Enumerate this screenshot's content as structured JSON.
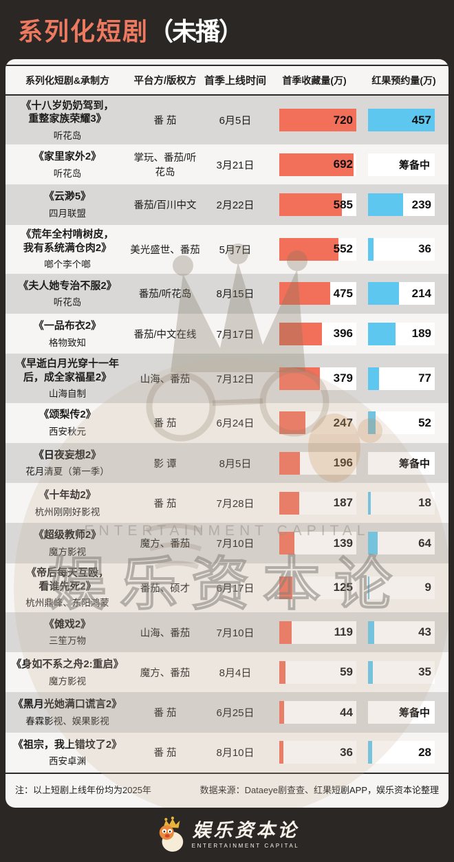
{
  "colors": {
    "background": "#2B2724",
    "title_accent": "#EE7961",
    "title_secondary": "#FFFFFF",
    "bar_collect_orange": "#F2705A",
    "bar_reserve_blue": "#5EC7EF",
    "row_shade": "#D9D8D6",
    "row_light": "#F6F5F3",
    "card": "#F6F5F3",
    "rule": "#2B2B2B"
  },
  "header": {
    "title_main": "系列化短剧",
    "title_paren": "（未播）"
  },
  "table": {
    "columns": [
      "系列化短剧&承制方",
      "平台方/版权方",
      "首季上线时间",
      "首季收藏量(万)",
      "红果预约量(万)"
    ],
    "collect_max": 720,
    "reserve_max": 457,
    "pending_label": "筹备中",
    "rows": [
      {
        "title": "《十八岁奶奶驾到，\n重整家族荣耀3》",
        "producer": "听花岛",
        "platform": "番 茄",
        "date": "6月5日",
        "collect": 720,
        "reserve": 457
      },
      {
        "title": "《家里家外2》",
        "producer": "听花岛",
        "platform": "掌玩、番茄/听花岛",
        "date": "3月21日",
        "collect": 692,
        "reserve": "筹备中"
      },
      {
        "title": "《云渺5》",
        "producer": "四月联盟",
        "platform": "番茄/百川中文",
        "date": "2月22日",
        "collect": 585,
        "reserve": 239
      },
      {
        "title": "《荒年全村啃树皮，\n我有系统满仓肉2》",
        "producer": "啷个李个啷",
        "platform": "美光盛世、番茄",
        "date": "5月7日",
        "collect": 552,
        "reserve": 36
      },
      {
        "title": "《夫人她专治不服2》",
        "producer": "听花岛",
        "platform": "番茄/听花岛",
        "date": "8月15日",
        "collect": 475,
        "reserve": 214
      },
      {
        "title": "《一品布衣2》",
        "producer": "格物致知",
        "platform": "番茄/中文在线",
        "date": "7月17日",
        "collect": 396,
        "reserve": 189
      },
      {
        "title": "《早逝白月光穿十一年\n后，成全家福星2》",
        "producer": "山海自制",
        "platform": "山海、番茄",
        "date": "7月12日",
        "collect": 379,
        "reserve": 77
      },
      {
        "title": "《颂梨传2》",
        "producer": "西安秋元",
        "platform": "番 茄",
        "date": "6月24日",
        "collect": 247,
        "reserve": 52
      },
      {
        "title": "《日夜妄想2》",
        "producer": "花月清夏（第一季）",
        "platform": "影 谭",
        "date": "8月5日",
        "collect": 196,
        "reserve": "筹备中"
      },
      {
        "title": "《十年劫2》",
        "producer": "杭州刚刚好影视",
        "platform": "番 茄",
        "date": "7月28日",
        "collect": 187,
        "reserve": 18
      },
      {
        "title": "《超级教师2》",
        "producer": "魔方影视",
        "platform": "魔方、番茄",
        "date": "7月10日",
        "collect": 139,
        "reserve": 64
      },
      {
        "title": "《帝后每天互殴，\n看谁先死2》",
        "producer": "杭州鼎峰、东阳鸿蒙",
        "platform": "番茄、硕才",
        "date": "6月17日",
        "collect": 125,
        "reserve": 9
      },
      {
        "title": "《傩戏2》",
        "producer": "三笙万物",
        "platform": "山海、番茄",
        "date": "7月10日",
        "collect": 119,
        "reserve": 43
      },
      {
        "title": "《身如不系之舟2:重启》",
        "producer": "魔方影视",
        "platform": "魔方、番茄",
        "date": "8月4日",
        "collect": 59,
        "reserve": 35
      },
      {
        "title": "《黑月光她满口谎言2》",
        "producer": "春霖影视、娱果影视",
        "platform": "番 茄",
        "date": "6月25日",
        "collect": 44,
        "reserve": "筹备中"
      },
      {
        "title": "《祖宗，我上错坟了2》",
        "producer": "西安卓渊",
        "platform": "番 茄",
        "date": "8月10日",
        "collect": 36,
        "reserve": 28
      }
    ]
  },
  "footnote": {
    "note": "注：以上短剧上线年份均为2025年",
    "source": "数据来源：Dataeye剧查查、红果短剧APP，娱乐资本论整理"
  },
  "watermark": {
    "text_cn": "娱乐资本论",
    "text_en": "ENTERTAINMENT CAPITAL"
  },
  "footer": {
    "brand_cn": "娱乐资本论",
    "brand_en": "ENTERTAINMENT CAPITAL"
  },
  "chart_data": {
    "type": "bar",
    "orientation": "horizontal",
    "title": "系列化短剧（未播）",
    "categories": [
      "《十八岁奶奶驾到，重整家族荣耀3》",
      "《家里家外2》",
      "《云渺5》",
      "《荒年全村啃树皮，我有系统满仓肉2》",
      "《夫人她专治不服2》",
      "《一品布衣2》",
      "《早逝白月光穿十一年后，成全家福星2》",
      "《颂梨传2》",
      "《日夜妄想2》",
      "《十年劫2》",
      "《超级教师2》",
      "《帝后每天互殴，看谁先死2》",
      "《傩戏2》",
      "《身如不系之舟2:重启》",
      "《黑月光她满口谎言2》",
      "《祖宗，我上错坟了2》"
    ],
    "producers": [
      "听花岛",
      "听花岛",
      "四月联盟",
      "啷个李个啷",
      "听花岛",
      "格物致知",
      "山海自制",
      "西安秋元",
      "花月清夏（第一季）",
      "杭州刚刚好影视",
      "魔方影视",
      "杭州鼎峰、东阳鸿蒙",
      "三笙万物",
      "魔方影视",
      "春霖影视、娱果影视",
      "西安卓渊"
    ],
    "platforms": [
      "番茄",
      "掌玩、番茄/听花岛",
      "番茄/百川中文",
      "美光盛世、番茄",
      "番茄/听花岛",
      "番茄/中文在线",
      "山海、番茄",
      "番茄",
      "影谭",
      "番茄",
      "魔方、番茄",
      "番茄、硕才",
      "山海、番茄",
      "魔方、番茄",
      "番茄",
      "番茄"
    ],
    "launch_dates": [
      "6月5日",
      "3月21日",
      "2月22日",
      "5月7日",
      "8月15日",
      "7月17日",
      "7月12日",
      "6月24日",
      "8月5日",
      "7月28日",
      "7月10日",
      "6月17日",
      "7月10日",
      "8月4日",
      "6月25日",
      "8月10日"
    ],
    "series": [
      {
        "name": "首季收藏量(万)",
        "color": "#F2705A",
        "values": [
          720,
          692,
          585,
          552,
          475,
          396,
          379,
          247,
          196,
          187,
          139,
          125,
          119,
          59,
          44,
          36
        ]
      },
      {
        "name": "红果预约量(万)",
        "color": "#5EC7EF",
        "values": [
          457,
          "筹备中",
          239,
          36,
          214,
          189,
          77,
          52,
          "筹备中",
          18,
          64,
          9,
          43,
          35,
          "筹备中",
          28
        ]
      }
    ],
    "value_axis_range_collect": [
      0,
      720
    ],
    "value_axis_range_reserve": [
      0,
      457
    ],
    "grid": false,
    "legend_position": "column-headers"
  }
}
